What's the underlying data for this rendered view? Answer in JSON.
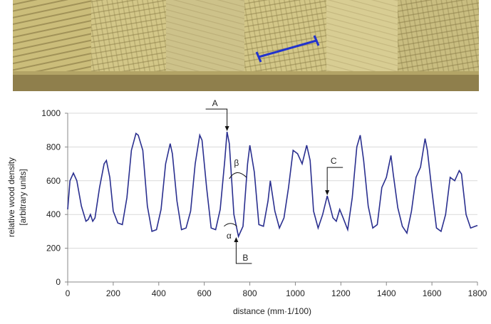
{
  "chart_data": {
    "type": "line",
    "y_label": [
      "relative wood density",
      "[arbitrary units]"
    ],
    "x_label": "distance (mm·1/100)",
    "xlim": [
      0,
      1800
    ],
    "xticks": [
      0,
      200,
      400,
      600,
      800,
      1000,
      1200,
      1400,
      1600,
      1800
    ],
    "ylim": [
      0,
      1000
    ],
    "yticks": [
      0,
      200,
      400,
      600,
      800,
      1000
    ],
    "grid": true,
    "x": [
      0,
      10,
      25,
      40,
      60,
      80,
      90,
      100,
      110,
      120,
      140,
      160,
      170,
      185,
      200,
      220,
      240,
      260,
      280,
      300,
      310,
      330,
      350,
      370,
      390,
      410,
      430,
      450,
      460,
      480,
      500,
      520,
      540,
      560,
      580,
      590,
      610,
      630,
      650,
      670,
      690,
      700,
      710,
      730,
      750,
      770,
      790,
      800,
      820,
      840,
      860,
      880,
      890,
      910,
      930,
      950,
      970,
      990,
      1010,
      1030,
      1050,
      1065,
      1080,
      1100,
      1120,
      1140,
      1150,
      1165,
      1180,
      1195,
      1210,
      1230,
      1250,
      1270,
      1285,
      1300,
      1320,
      1340,
      1360,
      1380,
      1400,
      1420,
      1430,
      1450,
      1470,
      1490,
      1510,
      1530,
      1550,
      1570,
      1580,
      1600,
      1620,
      1640,
      1660,
      1680,
      1700,
      1720,
      1730,
      1750,
      1770,
      1790,
      1800
    ],
    "series": [
      {
        "color": "#2a2f8f",
        "values": [
          430,
          600,
          645,
          600,
          450,
          360,
          370,
          400,
          360,
          380,
          560,
          700,
          720,
          620,
          420,
          350,
          340,
          500,
          780,
          880,
          870,
          780,
          450,
          300,
          310,
          430,
          700,
          820,
          760,
          480,
          310,
          320,
          420,
          700,
          870,
          840,
          560,
          320,
          310,
          430,
          720,
          890,
          820,
          400,
          270,
          330,
          700,
          810,
          650,
          340,
          330,
          480,
          600,
          420,
          320,
          380,
          560,
          780,
          760,
          700,
          810,
          720,
          420,
          320,
          400,
          510,
          460,
          380,
          360,
          430,
          380,
          310,
          500,
          800,
          870,
          720,
          450,
          320,
          340,
          560,
          620,
          750,
          640,
          440,
          330,
          290,
          420,
          620,
          680,
          850,
          780,
          540,
          320,
          300,
          400,
          620,
          600,
          660,
          640,
          400,
          320,
          330,
          335
        ]
      }
    ],
    "annotations": [
      {
        "text": "A",
        "x": 700,
        "y": 890
      },
      {
        "text": "B",
        "x": 740,
        "y": 270
      },
      {
        "text": "C",
        "x": 1140,
        "y": 510
      },
      {
        "text": "α",
        "x": 715,
        "y": 330
      },
      {
        "text": "β",
        "x": 760,
        "y": 620
      }
    ]
  }
}
